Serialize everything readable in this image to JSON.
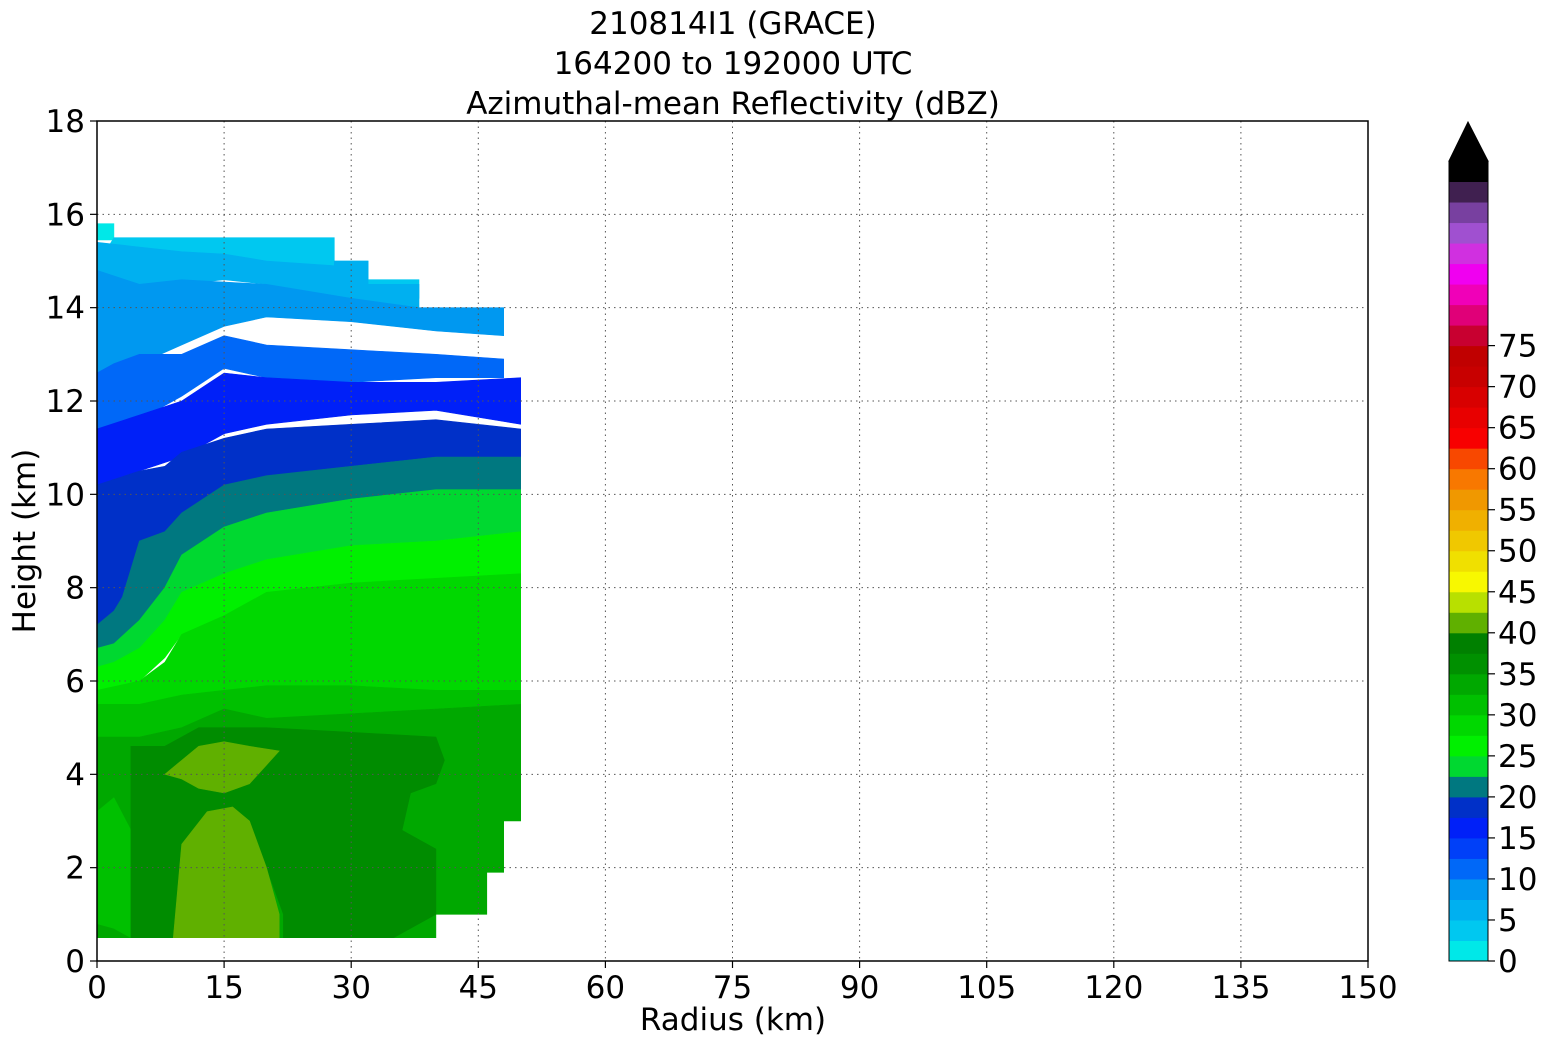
{
  "chart_data": {
    "type": "contourf",
    "title_lines": [
      "210814I1 (GRACE)",
      "164200 to 192000 UTC",
      "Azimuthal-mean Reflectivity (dBZ)"
    ],
    "xlabel": "Radius (km)",
    "ylabel": "Height (km)",
    "xlim": [
      0,
      150
    ],
    "ylim": [
      0,
      18
    ],
    "xticks": [
      0,
      15,
      30,
      45,
      60,
      75,
      90,
      105,
      120,
      135,
      150
    ],
    "yticks": [
      0,
      2,
      4,
      6,
      8,
      10,
      12,
      14,
      16,
      18
    ],
    "grid": true,
    "colorbar": {
      "ticks": [
        0,
        5,
        10,
        15,
        20,
        25,
        30,
        35,
        40,
        45,
        50,
        55,
        60,
        65,
        70,
        75
      ],
      "extend": "max",
      "levels_per_5": 2,
      "colors": [
        "#00e8e8",
        "#00c8f0",
        "#00b0f0",
        "#0098f0",
        "#0068f8",
        "#0040f8",
        "#0020f8",
        "#0030c8",
        "#007880",
        "#00d830",
        "#00f000",
        "#00d800",
        "#00c000",
        "#00a800",
        "#009000",
        "#008000",
        "#60b000",
        "#b8e000",
        "#f8f800",
        "#f0e000",
        "#f0c800",
        "#f0b000",
        "#f09800",
        "#f87800",
        "#f84800",
        "#f80000",
        "#e80000",
        "#d80000",
        "#c80000",
        "#c00000",
        "#c80030",
        "#e00078",
        "#f000b8",
        "#f000f0",
        "#d030e0",
        "#a050d0",
        "#7840a0",
        "#402050",
        "#000000"
      ]
    },
    "z_units": "dBZ",
    "series": [
      {
        "level": 0,
        "color": "#00e8e8",
        "polygon": [
          [
            0,
            15.45
          ],
          [
            0,
            15.8
          ],
          [
            2,
            15.8
          ],
          [
            2,
            15.45
          ]
        ]
      },
      {
        "level": 1,
        "color": "#00c8f0",
        "polygon": [
          [
            0,
            14.9
          ],
          [
            2,
            15.5
          ],
          [
            28,
            15.5
          ],
          [
            28,
            15
          ],
          [
            32,
            15
          ],
          [
            32,
            14.6
          ],
          [
            38,
            14.6
          ],
          [
            38,
            14.2
          ],
          [
            30,
            14.4
          ],
          [
            20,
            14.7
          ],
          [
            10,
            14.9
          ],
          [
            5,
            14.9
          ],
          [
            2,
            15
          ]
        ]
      },
      {
        "level": 2,
        "color": "#00b0f0",
        "polygon": [
          [
            0,
            14.8
          ],
          [
            0,
            15.4
          ],
          [
            5,
            15.3
          ],
          [
            10,
            15.2
          ],
          [
            15,
            15.15
          ],
          [
            20,
            15.0
          ],
          [
            28,
            14.9
          ],
          [
            28,
            15
          ],
          [
            32,
            15
          ],
          [
            32,
            14.5
          ],
          [
            38,
            14.5
          ],
          [
            38,
            14.0
          ],
          [
            30,
            14.2
          ],
          [
            20,
            14.5
          ],
          [
            15,
            14.6
          ],
          [
            10,
            14.5
          ],
          [
            5,
            14.3
          ],
          [
            0,
            14.4
          ]
        ]
      },
      {
        "level": 3,
        "color": "#0098f0",
        "polygon": [
          [
            0,
            12.5
          ],
          [
            0,
            14.8
          ],
          [
            5,
            14.5
          ],
          [
            10,
            14.6
          ],
          [
            15,
            14.55
          ],
          [
            20,
            14.5
          ],
          [
            30,
            14.2
          ],
          [
            38,
            14.0
          ],
          [
            48,
            14.0
          ],
          [
            48,
            13.4
          ],
          [
            40,
            13.5
          ],
          [
            30,
            13.7
          ],
          [
            20,
            13.8
          ],
          [
            15,
            13.6
          ],
          [
            10,
            13.2
          ],
          [
            5,
            12.8
          ],
          [
            2,
            12.5
          ]
        ]
      },
      {
        "level": 4,
        "color": "#0068f8",
        "polygon": [
          [
            0,
            11.4
          ],
          [
            0,
            12.6
          ],
          [
            2,
            12.8
          ],
          [
            5,
            13.0
          ],
          [
            10,
            13.0
          ],
          [
            15,
            13.4
          ],
          [
            20,
            13.2
          ],
          [
            30,
            13.1
          ],
          [
            40,
            13.0
          ],
          [
            48,
            12.9
          ],
          [
            48,
            12.5
          ],
          [
            40,
            12.5
          ],
          [
            30,
            12.4
          ],
          [
            20,
            12.5
          ],
          [
            15,
            12.7
          ],
          [
            10,
            12.1
          ],
          [
            5,
            11.6
          ],
          [
            2,
            11.4
          ]
        ]
      },
      {
        "level": 5,
        "color": "#0020f8",
        "polygon": [
          [
            0,
            10.2
          ],
          [
            0,
            11.4
          ],
          [
            5,
            11.7
          ],
          [
            10,
            12.0
          ],
          [
            15,
            12.6
          ],
          [
            20,
            12.5
          ],
          [
            30,
            12.4
          ],
          [
            40,
            12.4
          ],
          [
            50,
            12.5
          ],
          [
            50,
            11.5
          ],
          [
            40,
            11.8
          ],
          [
            30,
            11.7
          ],
          [
            20,
            11.5
          ],
          [
            15,
            11.3
          ],
          [
            10,
            10.8
          ],
          [
            5,
            10.5
          ]
        ]
      },
      {
        "level": 6,
        "color": "#0030c8",
        "polygon": [
          [
            0,
            7.2
          ],
          [
            0,
            10.2
          ],
          [
            5,
            10.5
          ],
          [
            8,
            10.6
          ],
          [
            10,
            10.9
          ],
          [
            15,
            11.2
          ],
          [
            20,
            11.4
          ],
          [
            30,
            11.5
          ],
          [
            40,
            11.6
          ],
          [
            50,
            11.4
          ],
          [
            50,
            10.8
          ],
          [
            40,
            10.8
          ],
          [
            30,
            10.6
          ],
          [
            20,
            10.4
          ],
          [
            15,
            10.0
          ],
          [
            10,
            9.5
          ],
          [
            8,
            9.2
          ],
          [
            5,
            9.0
          ],
          [
            3,
            7.8
          ],
          [
            2,
            7.4
          ]
        ]
      },
      {
        "level": 7,
        "color": "#007880",
        "polygon": [
          [
            0,
            6.7
          ],
          [
            0,
            7.2
          ],
          [
            2,
            7.5
          ],
          [
            3,
            7.8
          ],
          [
            5,
            9.0
          ],
          [
            8,
            9.2
          ],
          [
            10,
            9.6
          ],
          [
            15,
            10.2
          ],
          [
            20,
            10.4
          ],
          [
            30,
            10.6
          ],
          [
            40,
            10.8
          ],
          [
            50,
            10.8
          ],
          [
            50,
            10.1
          ],
          [
            40,
            10.1
          ],
          [
            30,
            9.9
          ],
          [
            20,
            9.6
          ],
          [
            15,
            9.3
          ],
          [
            10,
            8.7
          ],
          [
            8,
            8.0
          ],
          [
            5,
            7.2
          ],
          [
            2,
            6.8
          ]
        ]
      },
      {
        "level": 8,
        "color": "#00d830",
        "polygon": [
          [
            0,
            6.2
          ],
          [
            0,
            6.7
          ],
          [
            2,
            6.8
          ],
          [
            5,
            7.3
          ],
          [
            8,
            8.0
          ],
          [
            10,
            8.7
          ],
          [
            15,
            9.3
          ],
          [
            20,
            9.6
          ],
          [
            30,
            9.9
          ],
          [
            40,
            10.1
          ],
          [
            50,
            10.1
          ],
          [
            50,
            9.2
          ],
          [
            40,
            9.0
          ],
          [
            30,
            8.9
          ],
          [
            20,
            8.6
          ],
          [
            15,
            8.3
          ],
          [
            10,
            7.9
          ],
          [
            8,
            7.3
          ],
          [
            5,
            6.6
          ],
          [
            2,
            6.3
          ]
        ]
      },
      {
        "level": 9,
        "color": "#00f000",
        "polygon": [
          [
            0,
            5.7
          ],
          [
            0,
            6.3
          ],
          [
            2,
            6.4
          ],
          [
            5,
            6.7
          ],
          [
            8,
            7.3
          ],
          [
            10,
            7.9
          ],
          [
            15,
            8.3
          ],
          [
            20,
            8.6
          ],
          [
            30,
            8.9
          ],
          [
            40,
            9.0
          ],
          [
            50,
            9.2
          ],
          [
            50,
            8.3
          ],
          [
            40,
            8.2
          ],
          [
            30,
            8.1
          ],
          [
            20,
            7.9
          ],
          [
            15,
            7.4
          ],
          [
            10,
            7.0
          ],
          [
            8,
            6.5
          ],
          [
            5,
            6.0
          ],
          [
            2,
            5.8
          ]
        ]
      },
      {
        "level": 10,
        "color": "#00d800",
        "polygon": [
          [
            0,
            5.4
          ],
          [
            0,
            5.8
          ],
          [
            5,
            6.0
          ],
          [
            8,
            6.4
          ],
          [
            10,
            7.0
          ],
          [
            15,
            7.4
          ],
          [
            20,
            7.9
          ],
          [
            30,
            8.1
          ],
          [
            40,
            8.2
          ],
          [
            50,
            8.3
          ],
          [
            50,
            5.8
          ],
          [
            40,
            5.8
          ],
          [
            30,
            5.9
          ],
          [
            20,
            5.9
          ],
          [
            15,
            5.8
          ],
          [
            10,
            5.7
          ],
          [
            5,
            5.5
          ]
        ]
      },
      {
        "level": 11,
        "color": "#00c000",
        "polygon": [
          [
            0,
            4.8
          ],
          [
            0,
            5.5
          ],
          [
            5,
            5.5
          ],
          [
            10,
            5.7
          ],
          [
            15,
            5.8
          ],
          [
            20,
            5.9
          ],
          [
            30,
            5.9
          ],
          [
            40,
            5.8
          ],
          [
            50,
            5.8
          ],
          [
            50,
            5.5
          ],
          [
            40,
            5.4
          ],
          [
            30,
            5.3
          ],
          [
            20,
            5.2
          ],
          [
            15,
            5.4
          ],
          [
            10,
            5.0
          ],
          [
            5,
            4.8
          ]
        ]
      },
      {
        "level": 12,
        "color": "#00a800",
        "polygon": [
          [
            0,
            0.5
          ],
          [
            0,
            4.8
          ],
          [
            5,
            4.8
          ],
          [
            10,
            5.0
          ],
          [
            15,
            5.4
          ],
          [
            20,
            5.2
          ],
          [
            30,
            5.3
          ],
          [
            40,
            5.4
          ],
          [
            50,
            5.5
          ],
          [
            50,
            3.0
          ],
          [
            48,
            3.0
          ],
          [
            48,
            1.9
          ],
          [
            46,
            1.9
          ],
          [
            46,
            1.0
          ],
          [
            40,
            1.0
          ],
          [
            40,
            0.5
          ]
        ]
      },
      {
        "level": 13,
        "color": "#00c000",
        "polygon": [
          [
            0,
            3.2
          ],
          [
            0,
            0.8
          ],
          [
            2,
            0.7
          ],
          [
            4,
            0.5
          ],
          [
            5,
            0.8
          ],
          [
            5,
            2.0
          ],
          [
            4,
            2.8
          ],
          [
            2,
            3.5
          ]
        ]
      },
      {
        "level": 14,
        "color": "#008c00",
        "polygon": [
          [
            4,
            0.5
          ],
          [
            4,
            4.6
          ],
          [
            8,
            4.6
          ],
          [
            12,
            5.0
          ],
          [
            20,
            5.0
          ],
          [
            30,
            4.9
          ],
          [
            40,
            4.8
          ],
          [
            41,
            4.3
          ],
          [
            40,
            3.8
          ],
          [
            37,
            3.6
          ],
          [
            36,
            2.8
          ],
          [
            40,
            2.4
          ],
          [
            40,
            1.0
          ],
          [
            35,
            0.5
          ],
          [
            22,
            0.5
          ],
          [
            22,
            1.0
          ],
          [
            20,
            2.0
          ],
          [
            18,
            3.0
          ],
          [
            16,
            3.3
          ],
          [
            13,
            3.2
          ],
          [
            11,
            2.5
          ],
          [
            9,
            0.5
          ]
        ]
      },
      {
        "level": 15,
        "color": "#60b000",
        "polygon": [
          [
            9,
            0.5
          ],
          [
            10,
            2.5
          ],
          [
            13,
            3.2
          ],
          [
            16,
            3.3
          ],
          [
            18,
            3.0
          ],
          [
            20,
            2.0
          ],
          [
            21.5,
            1.0
          ],
          [
            21.5,
            0.5
          ]
        ]
      },
      {
        "level": 16,
        "color": "#60b000",
        "polygon": [
          [
            8,
            4.0
          ],
          [
            10,
            4.3
          ],
          [
            12,
            4.6
          ],
          [
            15,
            4.7
          ],
          [
            18,
            4.6
          ],
          [
            21.5,
            4.5
          ],
          [
            20,
            4.2
          ],
          [
            18,
            3.8
          ],
          [
            15,
            3.6
          ],
          [
            12,
            3.7
          ],
          [
            10,
            3.9
          ]
        ]
      }
    ]
  }
}
